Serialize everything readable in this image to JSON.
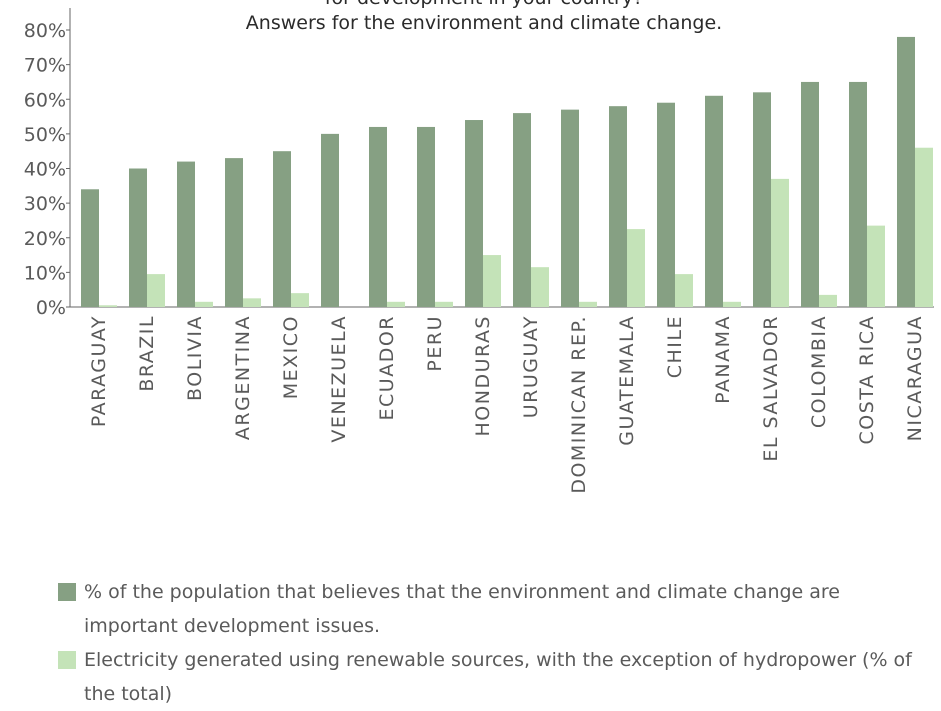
{
  "chart_data": {
    "type": "bar",
    "title_lines": [
      "for development in your country?",
      "Answers for the environment and climate change."
    ],
    "categories": [
      "PARAGUAY",
      "BRAZIL",
      "BOLIVIA",
      "ARGENTINA",
      "MEXICO",
      "VENEZUELA",
      "ECUADOR",
      "PERU",
      "HONDURAS",
      "URUGUAY",
      "DOMINICAN REP.",
      "GUATEMALA",
      "CHILE",
      "PANAMA",
      "EL SALVADOR",
      "COLOMBIA",
      "COSTA RICA",
      "NICARAGUA"
    ],
    "series": [
      {
        "name": "% of the population that believes that the environment and climate change are important development issues.",
        "color": "#86a083",
        "values": [
          34,
          40,
          42,
          43,
          45,
          50,
          52,
          52,
          54,
          56,
          57,
          58,
          59,
          61,
          62,
          65,
          65,
          78
        ]
      },
      {
        "name": "Electricity generated using renewable sources, with the exception of hydropower (% of the total)",
        "color": "#c4e3b8",
        "values": [
          0.5,
          9.5,
          1.5,
          2.5,
          4,
          0,
          1.5,
          1.5,
          15,
          11.5,
          1.5,
          22.5,
          9.5,
          1.5,
          37,
          3.5,
          23.5,
          46
        ]
      }
    ],
    "yticks": [
      "0%",
      "10%",
      "20%",
      "30%",
      "40%",
      "50%",
      "60%",
      "70%",
      "80%"
    ],
    "ylim": [
      0,
      80
    ],
    "xlabel": "",
    "ylabel": "",
    "grid": false,
    "legend_position": "bottom"
  }
}
